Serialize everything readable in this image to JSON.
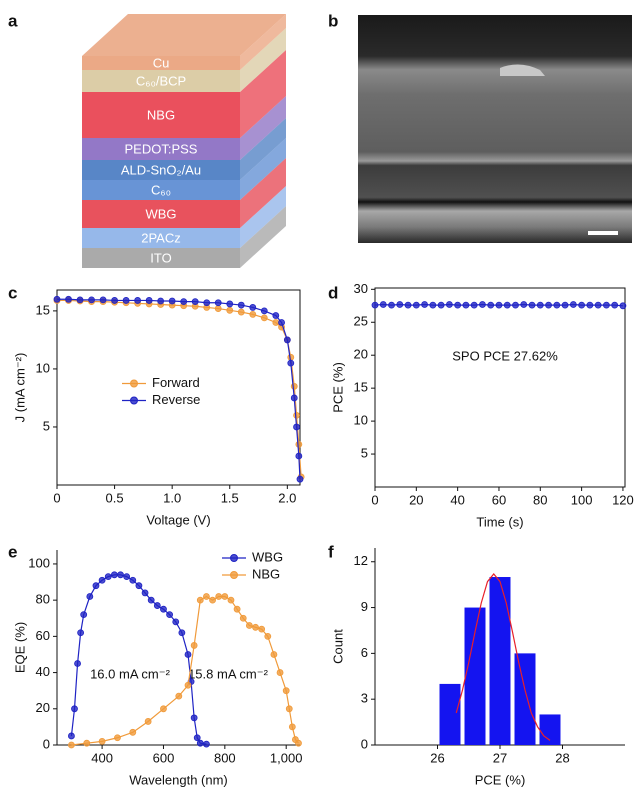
{
  "panel_a": {
    "panel": "a",
    "layers": [
      {
        "label": "Cu",
        "color": "#e9a27c"
      },
      {
        "label": "C₆₀/BCP",
        "color": "#d9c9a0"
      },
      {
        "label": "NBG",
        "color": "#e8414f"
      },
      {
        "label": "PEDOT:PSS",
        "color": "#8a6cc2"
      },
      {
        "label": "ALD-SnO₂/Au",
        "color": "#4a7cc2"
      },
      {
        "label": "C₆₀",
        "color": "#5b8bd2"
      },
      {
        "label": "WBG",
        "color": "#e6434f"
      },
      {
        "label": "2PACz",
        "color": "#8db2e8"
      },
      {
        "label": "ITO",
        "color": "#a3a3a3"
      }
    ]
  },
  "panel_b": {
    "panel": "b"
  },
  "chart_data": [
    {
      "panel": "c",
      "type": "line",
      "xlabel": "Voltage (V)",
      "ylabel": "J (mA cm⁻²)",
      "xlim": [
        0,
        2.11
      ],
      "ylim": [
        0,
        16.8
      ],
      "xticks": [
        0,
        0.5,
        {
          "value": 1,
          "label": "1.0"
        },
        1.5,
        {
          "value": 2,
          "label": "2.0"
        }
      ],
      "yticks": [
        5,
        10,
        15
      ],
      "legend": "center left",
      "series": [
        {
          "name": "Forward",
          "color": "#f09a3a",
          "x": [
            0,
            0.1,
            0.2,
            0.3,
            0.4,
            0.5,
            0.6,
            0.7,
            0.8,
            0.9,
            1.0,
            1.1,
            1.2,
            1.3,
            1.4,
            1.5,
            1.6,
            1.7,
            1.8,
            1.9,
            1.95,
            2.0,
            2.03,
            2.06,
            2.08,
            2.1,
            2.12
          ],
          "values": [
            15.9,
            15.9,
            15.85,
            15.8,
            15.8,
            15.75,
            15.7,
            15.65,
            15.6,
            15.55,
            15.5,
            15.45,
            15.4,
            15.3,
            15.2,
            15.05,
            14.9,
            14.7,
            14.4,
            14.0,
            13.6,
            12.5,
            11,
            8.5,
            6,
            3.5,
            0.7
          ]
        },
        {
          "name": "Reverse",
          "color": "#1f23c4",
          "x": [
            0,
            0.1,
            0.2,
            0.3,
            0.4,
            0.5,
            0.6,
            0.7,
            0.8,
            0.9,
            1.0,
            1.1,
            1.2,
            1.3,
            1.4,
            1.5,
            1.6,
            1.7,
            1.8,
            1.9,
            1.95,
            2.0,
            2.03,
            2.06,
            2.08,
            2.1,
            2.11
          ],
          "values": [
            16.0,
            16.0,
            15.95,
            15.95,
            15.95,
            15.9,
            15.9,
            15.9,
            15.9,
            15.85,
            15.85,
            15.8,
            15.8,
            15.7,
            15.7,
            15.6,
            15.5,
            15.3,
            15.0,
            14.6,
            14.0,
            12.5,
            10.5,
            7.5,
            5,
            2.5,
            0.5
          ]
        }
      ]
    },
    {
      "panel": "d",
      "type": "line",
      "xlabel": "Time (s)",
      "ylabel": "PCE (%)",
      "xlim": [
        0,
        121
      ],
      "ylim": [
        0,
        30.2
      ],
      "xticks": [
        0,
        20,
        40,
        60,
        80,
        100,
        120
      ],
      "yticks": [
        5,
        10,
        15,
        20,
        25,
        30
      ],
      "annotations": [
        "SPO PCE 27.62%"
      ],
      "series": [
        {
          "color": "#1f23c4",
          "x": [
            0,
            4,
            8,
            12,
            16,
            20,
            24,
            28,
            32,
            36,
            40,
            44,
            48,
            52,
            56,
            60,
            64,
            68,
            72,
            76,
            80,
            84,
            88,
            92,
            96,
            100,
            104,
            108,
            112,
            116,
            120
          ],
          "values": [
            27.6,
            27.7,
            27.6,
            27.7,
            27.6,
            27.6,
            27.7,
            27.6,
            27.6,
            27.7,
            27.6,
            27.6,
            27.6,
            27.7,
            27.6,
            27.6,
            27.6,
            27.6,
            27.7,
            27.6,
            27.6,
            27.6,
            27.6,
            27.6,
            27.7,
            27.6,
            27.6,
            27.6,
            27.6,
            27.6,
            27.5
          ]
        }
      ]
    },
    {
      "panel": "e",
      "type": "line",
      "xlabel": "Wavelength (nm)",
      "ylabel": "EQE (%)",
      "xlim": [
        253,
        1045
      ],
      "ylim": [
        0,
        107.7
      ],
      "xticks": [
        400,
        600,
        800,
        {
          "value": 1000,
          "label": "1,000"
        }
      ],
      "yticks": [
        0,
        20,
        40,
        60,
        80,
        100
      ],
      "legend": "upper right",
      "annotations": [
        "16.0 mA cm⁻²",
        "15.8 mA cm⁻²"
      ],
      "series": [
        {
          "name": "WBG",
          "color": "#1f23c4",
          "x": [
            300,
            310,
            320,
            330,
            340,
            360,
            380,
            400,
            420,
            440,
            460,
            480,
            500,
            520,
            540,
            560,
            580,
            600,
            620,
            640,
            660,
            680,
            690,
            700,
            710,
            720,
            740
          ],
          "values": [
            5,
            20,
            45,
            62,
            72,
            82,
            88,
            91,
            93,
            94,
            94,
            93,
            91,
            88,
            84,
            80,
            77,
            75,
            72,
            68,
            62,
            50,
            35,
            15,
            4,
            1,
            0.5
          ]
        },
        {
          "name": "NBG",
          "color": "#f09a3a",
          "x": [
            300,
            350,
            400,
            450,
            500,
            550,
            600,
            650,
            680,
            700,
            720,
            740,
            760,
            780,
            800,
            820,
            840,
            860,
            880,
            900,
            920,
            940,
            960,
            980,
            1000,
            1010,
            1020,
            1030,
            1040
          ],
          "values": [
            0,
            1,
            2,
            4,
            7,
            13,
            20,
            27,
            33,
            55,
            80,
            82,
            80,
            82,
            82,
            80,
            75,
            70,
            66,
            65,
            64,
            60,
            50,
            40,
            30,
            20,
            10,
            3,
            1
          ]
        }
      ]
    },
    {
      "panel": "f",
      "type": "histogram",
      "xlabel": "PCE (%)",
      "ylabel": "Count",
      "xlim": [
        25,
        29
      ],
      "ylim": [
        0,
        12.9
      ],
      "xticks": [
        26,
        27,
        28
      ],
      "yticks": [
        0,
        3,
        6,
        9,
        12
      ],
      "bins": [
        26.0,
        26.4,
        26.8,
        27.2,
        27.6,
        28.0
      ],
      "counts": [
        4,
        9,
        11,
        6,
        2
      ],
      "color": "#1414f0",
      "fit": {
        "color": "#e8202a",
        "x": [
          26.3,
          26.4,
          26.5,
          26.6,
          26.7,
          26.8,
          26.9,
          27.0,
          27.1,
          27.2,
          27.3,
          27.4,
          27.5,
          27.6,
          27.7,
          27.8
        ],
        "values": [
          2.1,
          3.6,
          5.4,
          7.4,
          9.3,
          10.7,
          11.2,
          10.7,
          9.3,
          7.4,
          5.4,
          3.6,
          2.1,
          1.2,
          0.6,
          0.3
        ]
      }
    }
  ]
}
